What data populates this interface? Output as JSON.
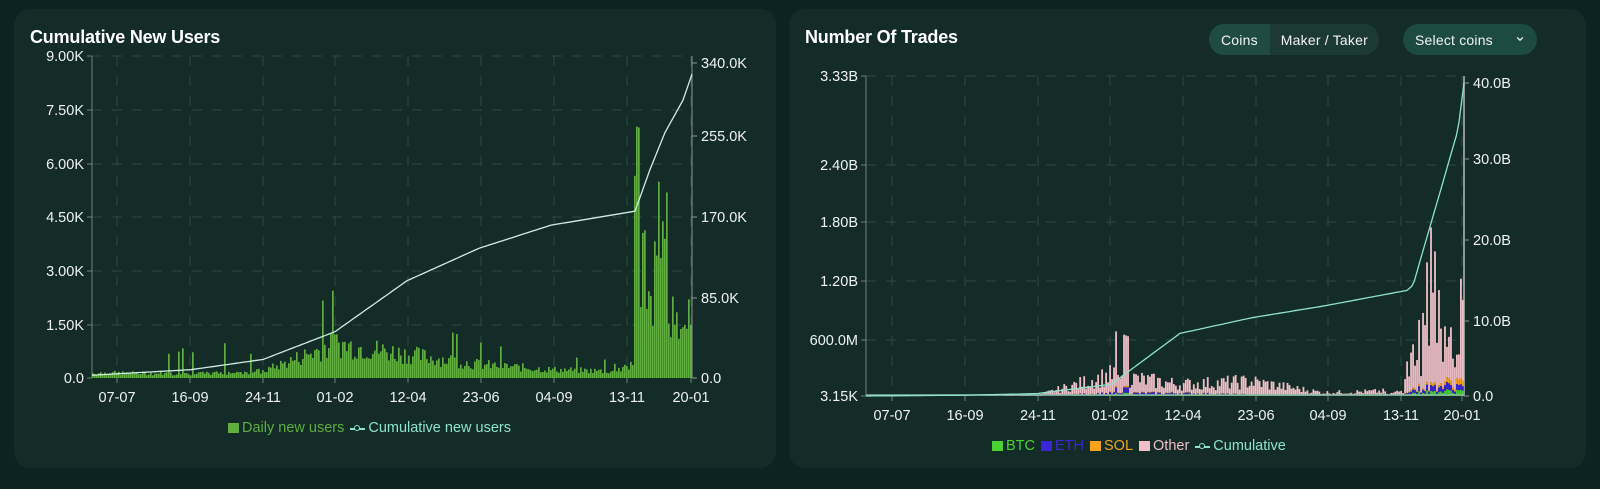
{
  "colors": {
    "page_bg": "#0c2421",
    "panel_bg": "#132c27",
    "bar_green": "#5fae3f",
    "cumulative_line": "#8fe3cc",
    "btc": "#4ad233",
    "eth": "#3a26d6",
    "sol": "#f6a31d",
    "other": "#f1bfc8"
  },
  "left_panel": {
    "title": "Cumulative New Users",
    "legend": [
      {
        "label": "Daily new users",
        "type": "bar",
        "color": "#5fae3f"
      },
      {
        "label": "Cumulative new users",
        "type": "line",
        "color": "#8fe3cc"
      }
    ]
  },
  "right_panel": {
    "title": "Number Of Trades",
    "toggle": [
      {
        "label": "Coins",
        "active": true
      },
      {
        "label": "Maker / Taker",
        "active": false
      }
    ],
    "select": {
      "label": "Select coins",
      "icon": "chevron-down-icon"
    },
    "legend": [
      {
        "label": "BTC",
        "type": "bar",
        "color": "#4ad233"
      },
      {
        "label": "ETH",
        "type": "bar",
        "color": "#3a26d6"
      },
      {
        "label": "SOL",
        "type": "bar",
        "color": "#f6a31d"
      },
      {
        "label": "Other",
        "type": "bar",
        "color": "#f1bfc8"
      },
      {
        "label": "Cumulative",
        "type": "line",
        "color": "#8fe3cc"
      }
    ]
  },
  "chart_data": [
    {
      "type": "bar",
      "title": "Cumulative New Users",
      "xlabel": "",
      "ylabel": "",
      "x_ticks": [
        "07-07",
        "16-09",
        "24-11",
        "01-02",
        "12-04",
        "23-06",
        "04-09",
        "13-11",
        "20-01"
      ],
      "y_left_ticks": [
        "0.0",
        "1.50K",
        "3.00K",
        "4.50K",
        "6.00K",
        "7.50K",
        "9.00K"
      ],
      "y_right_ticks": [
        "0.0",
        "85.0K",
        "170.0K",
        "255.0K",
        "340.0K"
      ],
      "ylim_left": [
        0,
        9000
      ],
      "ylim_right": [
        0,
        340000
      ],
      "grid": true,
      "legend_position": "bottom",
      "series": [
        {
          "name": "Daily new users",
          "type": "bar",
          "axis": "left",
          "x": [
            "07-07",
            "16-09",
            "24-11",
            "01-02",
            "12-04",
            "23-06",
            "04-09",
            "13-11",
            "27-11",
            "11-12",
            "25-12",
            "20-01"
          ],
          "values": [
            150,
            120,
            200,
            1000,
            700,
            400,
            250,
            200,
            5900,
            6200,
            1500,
            2000
          ]
        },
        {
          "name": "Cumulative new users",
          "type": "line",
          "axis": "right",
          "x": [
            "07-07",
            "16-09",
            "24-11",
            "01-02",
            "12-04",
            "23-06",
            "04-09",
            "13-11",
            "27-11",
            "11-12",
            "25-12",
            "20-01"
          ],
          "values": [
            3000,
            9000,
            20000,
            50000,
            105000,
            140000,
            165000,
            180000,
            225000,
            265000,
            300000,
            328000
          ]
        }
      ]
    },
    {
      "type": "area",
      "title": "Number Of Trades",
      "xlabel": "",
      "ylabel": "",
      "x_ticks": [
        "07-07",
        "16-09",
        "24-11",
        "01-02",
        "12-04",
        "23-06",
        "04-09",
        "13-11",
        "20-01"
      ],
      "y_left_ticks": [
        "3.15K",
        "600.0M",
        "1.20B",
        "1.80B",
        "2.40B",
        "3.33B"
      ],
      "y_right_ticks": [
        "0.0",
        "10.0B",
        "20.0B",
        "30.0B",
        "40.0B"
      ],
      "ylim_left": [
        3150,
        3330000000
      ],
      "ylim_right": [
        0,
        40000000000
      ],
      "grid": true,
      "legend_position": "bottom",
      "series": [
        {
          "name": "BTC",
          "type": "stacked-bar",
          "axis": "left",
          "x": [
            "07-07",
            "16-09",
            "24-11",
            "01-02",
            "12-04",
            "23-06",
            "04-09",
            "13-11",
            "27-11",
            "11-12",
            "20-01"
          ],
          "values": [
            0,
            0,
            0,
            10000000,
            15000000,
            8000000,
            5000000,
            8000000,
            40000000,
            50000000,
            60000000
          ]
        },
        {
          "name": "ETH",
          "type": "stacked-bar",
          "axis": "left",
          "x": [
            "07-07",
            "16-09",
            "24-11",
            "01-02",
            "12-04",
            "23-06",
            "04-09",
            "13-11",
            "27-11",
            "11-12",
            "20-01"
          ],
          "values": [
            0,
            0,
            0,
            20000000,
            15000000,
            5000000,
            3000000,
            5000000,
            40000000,
            60000000,
            50000000
          ]
        },
        {
          "name": "SOL",
          "type": "stacked-bar",
          "axis": "left",
          "x": [
            "07-07",
            "16-09",
            "24-11",
            "01-02",
            "12-04",
            "23-06",
            "04-09",
            "13-11",
            "27-11",
            "11-12",
            "20-01"
          ],
          "values": [
            0,
            0,
            0,
            5000000,
            5000000,
            2000000,
            2000000,
            3000000,
            20000000,
            30000000,
            60000000
          ]
        },
        {
          "name": "Other",
          "type": "stacked-bar",
          "axis": "left",
          "x": [
            "07-07",
            "16-09",
            "24-11",
            "01-02",
            "12-04",
            "23-06",
            "04-09",
            "13-11",
            "27-11",
            "11-12",
            "20-01"
          ],
          "values": [
            0,
            0,
            5000000,
            200000000,
            100000000,
            150000000,
            30000000,
            40000000,
            500000000,
            1200000000,
            900000000
          ]
        },
        {
          "name": "Cumulative",
          "type": "line",
          "axis": "right",
          "x": [
            "07-07",
            "16-09",
            "24-11",
            "01-02",
            "12-04",
            "23-06",
            "04-09",
            "13-11",
            "27-11",
            "11-12",
            "20-01"
          ],
          "values": [
            0,
            100000000,
            300000000,
            1500000000,
            7500000000,
            9500000000,
            11000000000,
            12500000000,
            14000000000,
            30000000000,
            40000000000
          ]
        }
      ]
    }
  ]
}
